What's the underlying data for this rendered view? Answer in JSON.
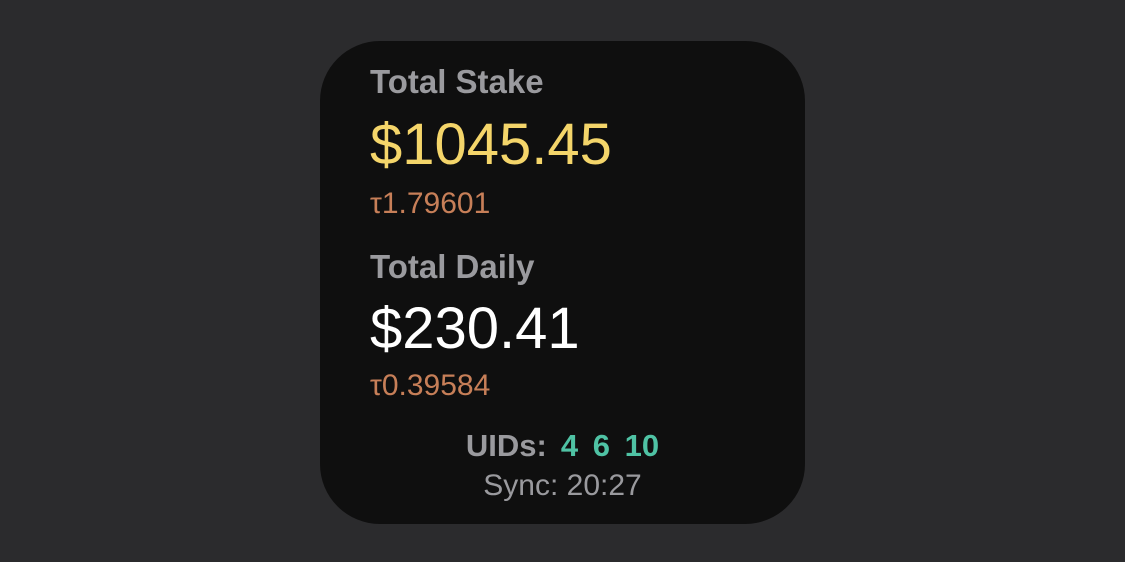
{
  "colors": {
    "background": "#2b2b2d",
    "widget_background": "#0f0f0f",
    "label": "#9a9a9e",
    "stake_amount": "#f4d56a",
    "daily_amount": "#ffffff",
    "tao": "#c77f58",
    "uids": "#4fc2a4"
  },
  "stake": {
    "label": "Total Stake",
    "usd": "$1045.45",
    "tao": "τ1.79601"
  },
  "daily": {
    "label": "Total Daily",
    "usd": "$230.41",
    "tao": "τ0.39584"
  },
  "uids": {
    "label": "UIDs:",
    "values": "4 6 10"
  },
  "sync": {
    "text": "Sync: 20:27"
  }
}
